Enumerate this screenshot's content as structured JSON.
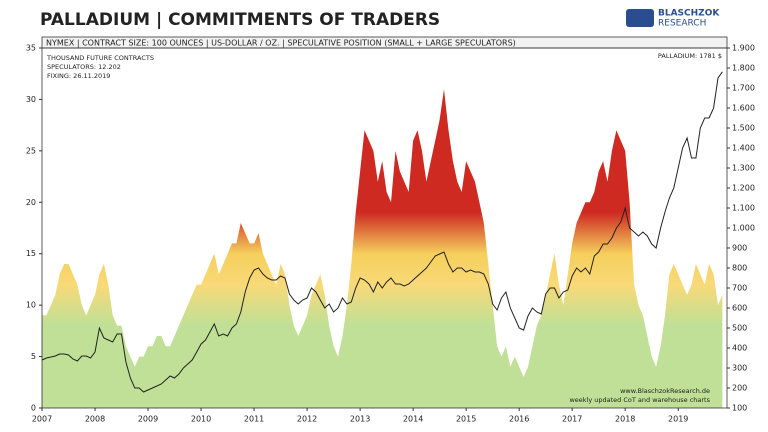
{
  "chart_data": {
    "type": "area_line",
    "title": "PALLADIUM | COMMITMENTS OF TRADERS",
    "subtitle": "NYMEX  |  CONTRACT SIZE: 100 OUNCES  |  US-DOLLAR / OZ.  |  SPECULATIVE POSITION (SMALL + LARGE SPECULATORS)",
    "logo": [
      "BLASCHZOK",
      "RESEARCH"
    ],
    "annotations": [
      "THOUSAND  FUTURE  CONTRACTS",
      "SPECULATORS: 12.202",
      "FIXING: 26.11.2019"
    ],
    "price_label": "PALLADIUM: 1781 $",
    "footer": [
      "www.BlaschzokResearch.de",
      "weekly updated CoT and warehouse charts"
    ],
    "xlim": [
      2007,
      2019.92
    ],
    "xticks": [
      2007,
      2008,
      2009,
      2010,
      2011,
      2012,
      2013,
      2014,
      2015,
      2016,
      2017,
      2018,
      2019
    ],
    "ylim": [
      0,
      35
    ],
    "yticks": [
      0,
      5,
      10,
      15,
      20,
      25,
      30,
      35
    ],
    "y2lim": [
      100,
      1900
    ],
    "y2ticks": [
      100,
      200,
      300,
      400,
      500,
      600,
      700,
      800,
      900,
      {
        "value": 1000,
        "label": "1.000"
      },
      {
        "value": 1100,
        "label": "1.100"
      },
      {
        "value": 1200,
        "label": "1.200"
      },
      {
        "value": 1300,
        "label": "1.300"
      },
      {
        "value": 1400,
        "label": "1.400"
      },
      {
        "value": 1500,
        "label": "1.500"
      },
      {
        "value": 1600,
        "label": "1.600"
      },
      {
        "value": 1700,
        "label": "1.700"
      },
      {
        "value": 1800,
        "label": "1.800"
      },
      {
        "value": 1900,
        "label": "1.900"
      }
    ],
    "area_gradient": [
      {
        "value": 8,
        "color": "#bfe096"
      },
      {
        "value": 12,
        "color": "#f9d978"
      },
      {
        "value": 15,
        "color": "#f5cf5c"
      },
      {
        "value": 19,
        "color": "#cf2a22"
      }
    ],
    "x": [
      2007,
      2007.083,
      2007.167,
      2007.25,
      2007.333,
      2007.417,
      2007.5,
      2007.583,
      2007.667,
      2007.75,
      2007.833,
      2007.917,
      2008,
      2008.083,
      2008.167,
      2008.25,
      2008.333,
      2008.417,
      2008.5,
      2008.583,
      2008.667,
      2008.75,
      2008.833,
      2008.917,
      2009,
      2009.083,
      2009.167,
      2009.25,
      2009.333,
      2009.417,
      2009.5,
      2009.583,
      2009.667,
      2009.75,
      2009.833,
      2009.917,
      2010,
      2010.083,
      2010.167,
      2010.25,
      2010.333,
      2010.417,
      2010.5,
      2010.583,
      2010.667,
      2010.75,
      2010.833,
      2010.917,
      2011,
      2011.083,
      2011.167,
      2011.25,
      2011.333,
      2011.417,
      2011.5,
      2011.583,
      2011.667,
      2011.75,
      2011.833,
      2011.917,
      2012,
      2012.083,
      2012.167,
      2012.25,
      2012.333,
      2012.417,
      2012.5,
      2012.583,
      2012.667,
      2012.75,
      2012.833,
      2012.917,
      2013,
      2013.083,
      2013.167,
      2013.25,
      2013.333,
      2013.417,
      2013.5,
      2013.583,
      2013.667,
      2013.75,
      2013.833,
      2013.917,
      2014,
      2014.083,
      2014.167,
      2014.25,
      2014.333,
      2014.417,
      2014.5,
      2014.583,
      2014.667,
      2014.75,
      2014.833,
      2014.917,
      2015,
      2015.083,
      2015.167,
      2015.25,
      2015.333,
      2015.417,
      2015.5,
      2015.583,
      2015.667,
      2015.75,
      2015.833,
      2015.917,
      2016,
      2016.083,
      2016.167,
      2016.25,
      2016.333,
      2016.417,
      2016.5,
      2016.583,
      2016.667,
      2016.75,
      2016.833,
      2016.917,
      2017,
      2017.083,
      2017.167,
      2017.25,
      2017.333,
      2017.417,
      2017.5,
      2017.583,
      2017.667,
      2017.75,
      2017.833,
      2017.917,
      2018,
      2018.083,
      2018.167,
      2018.25,
      2018.333,
      2018.417,
      2018.5,
      2018.583,
      2018.667,
      2018.75,
      2018.833,
      2018.917,
      2019,
      2019.083,
      2019.167,
      2019.25,
      2019.333,
      2019.417,
      2019.5,
      2019.583,
      2019.667,
      2019.75,
      2019.833
    ],
    "series": [
      {
        "color": "#bfe096",
        "values": [
          9,
          9,
          10,
          11,
          13,
          14,
          14,
          13,
          12,
          10,
          9,
          10,
          11,
          13,
          14,
          12,
          9,
          8,
          8,
          6,
          5,
          4,
          5,
          5,
          6,
          6,
          7,
          7,
          6,
          6,
          7,
          8,
          9,
          10,
          11,
          12,
          12,
          13,
          14,
          15,
          13,
          14,
          15,
          16,
          16,
          18,
          17,
          16,
          16,
          17,
          15,
          14,
          13,
          12,
          14,
          13,
          10,
          8,
          7,
          8,
          9,
          11,
          12,
          13,
          11,
          8,
          6,
          5,
          7,
          10,
          14,
          19,
          23,
          27,
          26,
          25,
          22,
          24,
          21,
          20,
          25,
          23,
          22,
          21,
          26,
          27,
          25,
          22,
          24,
          26,
          28,
          31,
          27,
          24,
          22,
          21,
          24,
          23,
          22,
          20,
          18,
          14,
          10,
          6,
          5,
          6,
          4,
          5,
          4,
          3,
          4,
          6,
          8,
          9,
          11,
          13,
          15,
          12,
          10,
          13,
          16,
          18,
          19,
          20,
          20,
          21,
          23,
          24,
          22,
          25,
          27,
          26,
          25,
          20,
          12,
          10,
          9,
          7,
          5,
          4,
          6,
          9,
          13,
          14,
          13,
          12,
          11,
          12,
          14,
          13,
          12,
          14,
          13,
          10,
          11
        ]
      },
      {
        "color": "#222222",
        "axis": "y2",
        "values": [
          340,
          350,
          355,
          360,
          370,
          370,
          365,
          345,
          335,
          360,
          360,
          350,
          380,
          500,
          450,
          440,
          430,
          470,
          470,
          330,
          250,
          200,
          200,
          180,
          190,
          200,
          210,
          220,
          240,
          260,
          250,
          270,
          300,
          320,
          340,
          380,
          420,
          440,
          480,
          520,
          460,
          470,
          460,
          500,
          520,
          580,
          680,
          750,
          790,
          800,
          770,
          750,
          740,
          740,
          760,
          750,
          670,
          640,
          620,
          640,
          650,
          700,
          680,
          640,
          600,
          620,
          580,
          600,
          650,
          620,
          630,
          700,
          750,
          740,
          720,
          680,
          730,
          700,
          730,
          750,
          720,
          720,
          710,
          720,
          740,
          760,
          780,
          800,
          830,
          860,
          870,
          880,
          820,
          780,
          800,
          800,
          780,
          790,
          780,
          780,
          770,
          720,
          620,
          590,
          650,
          680,
          600,
          550,
          500,
          490,
          560,
          600,
          580,
          570,
          670,
          700,
          700,
          650,
          680,
          690,
          760,
          800,
          780,
          800,
          770,
          860,
          880,
          920,
          920,
          950,
          1000,
          1030,
          1100,
          1000,
          980,
          960,
          980,
          960,
          920,
          900,
          1000,
          1080,
          1150,
          1200,
          1300,
          1400,
          1450,
          1350,
          1350,
          1500,
          1550,
          1550,
          1600,
          1750,
          1781
        ]
      }
    ]
  }
}
